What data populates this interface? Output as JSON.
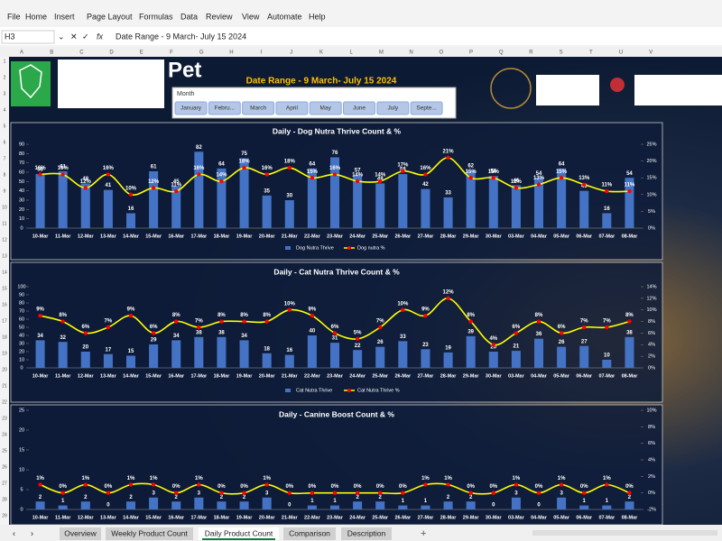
{
  "menu": [
    "File",
    "Home",
    "Insert",
    "Page Layout",
    "Formulas",
    "Data",
    "Review",
    "View",
    "Automate",
    "Help"
  ],
  "formula_bar": {
    "name_box": "H3",
    "fx": "fx",
    "formula": "Date Range - 9 March- July 15 2024"
  },
  "columns": [
    "A",
    "B",
    "C",
    "D",
    "E",
    "F",
    "G",
    "H",
    "I",
    "J",
    "K",
    "L",
    "M",
    "N",
    "O",
    "P",
    "Q",
    "R",
    "S",
    "T",
    "U",
    "V"
  ],
  "rows": [
    "1",
    "2",
    "3",
    "4",
    "5",
    "6",
    "7",
    "8",
    "9",
    "10",
    "11",
    "12",
    "13",
    "14",
    "15",
    "16",
    "17",
    "18",
    "19",
    "20",
    "21",
    "22",
    "23",
    "24",
    "25",
    "26",
    "27",
    "28",
    "29"
  ],
  "header": {
    "title": "Pet",
    "date_range": "Date Range - 9 March- July 15 2024"
  },
  "slicer": {
    "title": "Month",
    "items": [
      "January",
      "Febru...",
      "March",
      "April",
      "May",
      "June",
      "July",
      "Septe..."
    ]
  },
  "tabs": [
    "Overview",
    "Weekly Product Count",
    "Daily Product Count",
    "Comparison",
    "Description"
  ],
  "active_tab": 2,
  "chart_data": [
    {
      "type": "combo",
      "title": "Daily - Dog Nutra Thrive Count & %",
      "categories": [
        "10-Mar",
        "11-Mar",
        "12-Mar",
        "13-Mar",
        "14-Mar",
        "15-Mar",
        "16-Mar",
        "17-Mar",
        "18-Mar",
        "19-Mar",
        "20-Mar",
        "21-Mar",
        "22-Mar",
        "23-Mar",
        "24-Mar",
        "25-Mar",
        "26-Mar",
        "27-Mar",
        "28-Mar",
        "29-Mar",
        "30-Mar",
        "03-Mar",
        "04-Mar",
        "05-Mar",
        "06-Mar",
        "07-Mar",
        "08-Mar"
      ],
      "series": [
        {
          "name": "Dog Nutra Thrive",
          "kind": "bar",
          "color": "#4472c4",
          "values": [
            58,
            61,
            48,
            41,
            16,
            61,
            45,
            82,
            64,
            75,
            35,
            30,
            64,
            76,
            57,
            48,
            58,
            42,
            33,
            62,
            56,
            46,
            54,
            64,
            40,
            16,
            54
          ]
        },
        {
          "name": "Dog nutra %",
          "kind": "line",
          "axis": "y2",
          "color": "#ffff00",
          "marker_color": "#ff0000",
          "values": [
            16,
            16,
            12,
            16,
            10,
            12,
            11,
            16,
            14,
            18,
            16,
            18,
            15,
            16,
            14,
            14,
            17,
            16,
            21,
            15,
            15,
            12,
            13,
            15,
            13,
            11,
            11
          ],
          "value_labels": [
            "16%",
            "16%",
            "12%",
            "16%",
            "10%",
            "12%",
            "11%",
            "16%",
            "14%",
            "18%",
            "16%",
            "18%",
            "15%",
            "16%",
            "14%",
            "14%",
            "17%",
            "16%",
            "21%",
            "15%",
            "15%",
            "12%",
            "13%",
            "15%",
            "13%",
            "11%",
            "11%"
          ]
        }
      ],
      "ylim": [
        0,
        90
      ],
      "yticks": [
        0,
        10,
        20,
        30,
        40,
        50,
        60,
        70,
        80,
        90
      ],
      "y2lim": [
        0,
        25
      ],
      "y2ticks": [
        {
          "value": 0,
          "label": "0%"
        },
        {
          "value": 5,
          "label": "5%"
        },
        {
          "value": 10,
          "label": "10%"
        },
        {
          "value": 15,
          "label": "15%"
        },
        {
          "value": 20,
          "label": "20%"
        },
        {
          "value": 25,
          "label": "25%"
        }
      ]
    },
    {
      "type": "combo",
      "title": "Daily - Cat Nutra Thrive Count & %",
      "categories": [
        "10-Mar",
        "11-Mar",
        "12-Mar",
        "13-Mar",
        "14-Mar",
        "15-Mar",
        "16-Mar",
        "17-Mar",
        "18-Mar",
        "19-Mar",
        "20-Mar",
        "21-Mar",
        "22-Mar",
        "23-Mar",
        "24-Mar",
        "25-Mar",
        "26-Mar",
        "27-Mar",
        "28-Mar",
        "29-Mar",
        "30-Mar",
        "03-Mar",
        "04-Mar",
        "05-Mar",
        "06-Mar",
        "07-Mar",
        "08-Mar"
      ],
      "series": [
        {
          "name": "Cat Nutra Thrive",
          "kind": "bar",
          "color": "#4472c4",
          "values": [
            34,
            32,
            20,
            17,
            15,
            29,
            34,
            38,
            38,
            34,
            18,
            16,
            40,
            31,
            22,
            26,
            33,
            23,
            19,
            39,
            20,
            21,
            36,
            26,
            27,
            10,
            38
          ]
        },
        {
          "name": "Cat Nutra Thrive %",
          "kind": "line",
          "axis": "y2",
          "color": "#ffff00",
          "marker_color": "#ff0000",
          "values": [
            9,
            8,
            6,
            7,
            9,
            6,
            8,
            7,
            8,
            8,
            8,
            10,
            9,
            6,
            5,
            7,
            10,
            9,
            12,
            8,
            4,
            6,
            8,
            6,
            7,
            7,
            8
          ],
          "value_labels": [
            "9%",
            "8%",
            "6%",
            "7%",
            "9%",
            "6%",
            "8%",
            "7%",
            "8%",
            "8%",
            "8%",
            "10%",
            "9%",
            "6%",
            "5%",
            "7%",
            "10%",
            "9%",
            "12%",
            "8%",
            "4%",
            "6%",
            "8%",
            "6%",
            "7%",
            "7%",
            "8%"
          ]
        }
      ],
      "ylim": [
        0,
        100
      ],
      "yticks": [
        0,
        10,
        20,
        30,
        40,
        50,
        60,
        70,
        80,
        90,
        100
      ],
      "y2lim": [
        0,
        14
      ],
      "y2ticks": [
        {
          "value": 0,
          "label": "0%"
        },
        {
          "value": 2,
          "label": "2%"
        },
        {
          "value": 4,
          "label": "4%"
        },
        {
          "value": 6,
          "label": "6%"
        },
        {
          "value": 8,
          "label": "8%"
        },
        {
          "value": 10,
          "label": "10%"
        },
        {
          "value": 12,
          "label": "12%"
        },
        {
          "value": 14,
          "label": "14%"
        }
      ]
    },
    {
      "type": "combo",
      "title": "Daily - Canine Boost Count & %",
      "categories": [
        "10-Mar",
        "11-Mar",
        "12-Mar",
        "13-Mar",
        "14-Mar",
        "15-Mar",
        "16-Mar",
        "17-Mar",
        "18-Mar",
        "19-Mar",
        "20-Mar",
        "21-Mar",
        "22-Mar",
        "23-Mar",
        "24-Mar",
        "25-Mar",
        "26-Mar",
        "27-Mar",
        "28-Mar",
        "29-Mar",
        "30-Mar",
        "03-Mar",
        "04-Mar",
        "05-Mar",
        "06-Mar",
        "07-Mar",
        "08-Mar"
      ],
      "series": [
        {
          "kind": "bar",
          "color": "#4472c4",
          "values": [
            2,
            1,
            2,
            0,
            2,
            3,
            2,
            3,
            2,
            2,
            3,
            0,
            1,
            1,
            2,
            2,
            1,
            1,
            2,
            2,
            0,
            3,
            0,
            3,
            1,
            1,
            2
          ]
        },
        {
          "kind": "line",
          "axis": "y2",
          "color": "#ffff00",
          "marker_color": "#ff0000",
          "values": [
            1,
            0,
            1,
            0,
            1,
            1,
            0,
            1,
            0,
            0,
            1,
            0,
            0,
            0,
            0,
            0,
            0,
            1,
            1,
            0,
            0,
            1,
            0,
            1,
            0,
            1,
            0
          ],
          "value_labels": [
            "1%",
            "0%",
            "1%",
            "0%",
            "1%",
            "1%",
            "0%",
            "1%",
            "0%",
            "0%",
            "1%",
            "0%",
            "0%",
            "0%",
            "0%",
            "0%",
            "0%",
            "1%",
            "1%",
            "0%",
            "0%",
            "1%",
            "0%",
            "1%",
            "0%",
            "1%",
            "0%"
          ]
        }
      ],
      "ylim": [
        0,
        25
      ],
      "yticks": [
        0,
        5,
        10,
        15,
        20,
        25
      ],
      "y2lim": [
        -2,
        10
      ],
      "y2ticks": [
        {
          "value": -2,
          "label": "-2%"
        },
        {
          "value": 0,
          "label": "0%"
        },
        {
          "value": 2,
          "label": "2%"
        },
        {
          "value": 4,
          "label": "4%"
        },
        {
          "value": 6,
          "label": "6%"
        },
        {
          "value": 8,
          "label": "8%"
        },
        {
          "value": 10,
          "label": "10%"
        }
      ]
    }
  ]
}
